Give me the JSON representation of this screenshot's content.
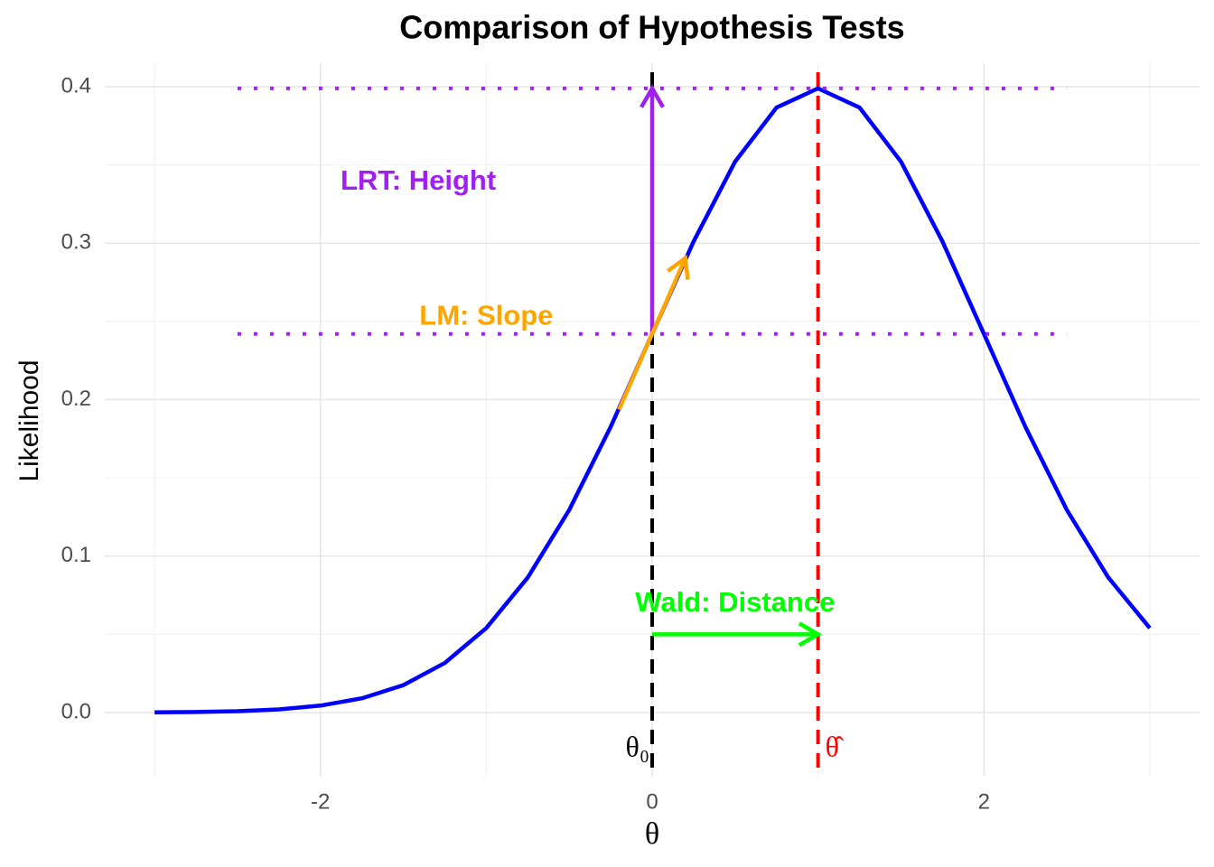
{
  "chart_data": {
    "type": "line",
    "title": "Comparison of Hypothesis Tests",
    "x_label": "θ",
    "y_label": "Likelihood",
    "x": [
      -3,
      -2.75,
      -2.5,
      -2.25,
      -2,
      -1.75,
      -1.5,
      -1.25,
      -1,
      -0.75,
      -0.5,
      -0.25,
      0,
      0.25,
      0.5,
      0.75,
      1,
      1.25,
      1.5,
      1.75,
      2,
      2.25,
      2.5,
      2.75,
      3
    ],
    "values": [
      0.000134,
      0.000353,
      0.000873,
      0.00203,
      0.00443,
      0.00909,
      0.0175,
      0.0317,
      0.054,
      0.0863,
      0.1295,
      0.1826,
      0.242,
      0.3011,
      0.3521,
      0.3867,
      0.3989,
      0.3867,
      0.3521,
      0.3011,
      0.242,
      0.1826,
      0.1295,
      0.0863,
      0.054
    ],
    "color": "#0000ff",
    "xlim": [
      -3.3,
      3.3
    ],
    "ylim": [
      -0.041,
      0.415
    ],
    "xticks": [
      -2,
      0,
      2
    ],
    "yticks": [
      {
        "value": 0,
        "label": "0.0"
      },
      0.1,
      0.2,
      0.3,
      0.4
    ],
    "x_minor_grid": [
      -3,
      -1,
      1,
      3
    ],
    "y_minor_grid": [
      0.05,
      0.15,
      0.25,
      0.35
    ],
    "grid": true,
    "vlines": [
      {
        "x": 0,
        "color": "#000000",
        "label": "θ₀",
        "hjust": 1
      },
      {
        "x": 1,
        "color": "#ff0000",
        "label": "θ̂",
        "hjust": 0
      }
    ],
    "hlines": [
      {
        "y": 0.3989,
        "x_range": [
          -2.5,
          2.5
        ],
        "color": "#a020f0"
      },
      {
        "y": 0.242,
        "x_range": [
          -2.5,
          2.5
        ],
        "color": "#a020f0"
      }
    ],
    "arrows": [
      {
        "x": [
          0,
          0
        ],
        "y": [
          0.242,
          0.3989
        ],
        "color": "#a020f0"
      },
      {
        "x": [
          -0.2,
          0.2
        ],
        "y": [
          0.1936,
          0.2904
        ],
        "color": "#ffa500"
      },
      {
        "x": [
          0,
          1
        ],
        "y": [
          0.05,
          0.05
        ],
        "color": "#00ff00"
      }
    ],
    "annotations": [
      {
        "text": "LRT: Height",
        "x": -1.41,
        "y": 0.339,
        "color": "#a020f0"
      },
      {
        "text": "LM: Slope",
        "x": -1.0,
        "y": 0.2525,
        "color": "#ffa500"
      },
      {
        "text": "Wald: Distance",
        "x": 0.5,
        "y": 0.0694,
        "color": "#00ff00"
      }
    ]
  }
}
